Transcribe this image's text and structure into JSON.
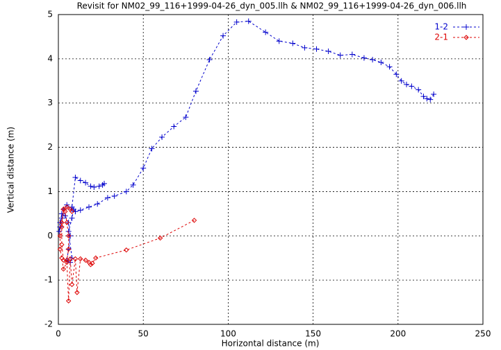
{
  "chart_data": {
    "type": "line",
    "title": "Revisit for NM02_99_116+1999-04-26_dyn_005.llh & NM02_99_116+1999-04-26_dyn_006.llh",
    "x_label": "Horizontal distance (m)",
    "y_label": "Vertical distance (m)",
    "xlim": [
      0,
      250
    ],
    "xticks": [
      0,
      50,
      100,
      150,
      200,
      250
    ],
    "ylim": [
      -2,
      5
    ],
    "yticks": [
      -2,
      -1,
      0,
      1,
      2,
      3,
      4,
      5
    ],
    "grid": true,
    "legend": "top-right",
    "series": [
      {
        "name": "1-2",
        "color": "#0000cc",
        "marker": "plus",
        "x": [
          221,
          219,
          217,
          215,
          212,
          208,
          205,
          202,
          199,
          195,
          190,
          185,
          180,
          173,
          166,
          159,
          152,
          145,
          138,
          130,
          122,
          112,
          105,
          97,
          89,
          81,
          75,
          68,
          61,
          55,
          50,
          44,
          40,
          33,
          29,
          23,
          18,
          13,
          10,
          8,
          5,
          3,
          2,
          1,
          0.5,
          1,
          2,
          4,
          6,
          7,
          6,
          5,
          7,
          8,
          6,
          8,
          9,
          10,
          8,
          10,
          13,
          16,
          19,
          21,
          24,
          26,
          27
        ],
        "values": [
          3.2,
          3.08,
          3.1,
          3.15,
          3.3,
          3.38,
          3.42,
          3.5,
          3.65,
          3.82,
          3.92,
          3.98,
          4.02,
          4.1,
          4.08,
          4.17,
          4.22,
          4.25,
          4.35,
          4.4,
          4.6,
          4.85,
          4.83,
          4.52,
          3.98,
          3.27,
          2.68,
          2.47,
          2.23,
          1.97,
          1.53,
          1.15,
          1.0,
          0.9,
          0.86,
          0.72,
          0.65,
          0.58,
          0.55,
          0.6,
          0.7,
          0.6,
          0.4,
          0.2,
          0.1,
          0.3,
          0.5,
          0.45,
          0.3,
          0.0,
          -0.3,
          -0.55,
          -0.6,
          -0.5,
          0.1,
          0.4,
          0.6,
          0.55,
          0.65,
          1.32,
          1.25,
          1.2,
          1.12,
          1.1,
          1.12,
          1.15,
          1.18
        ]
      },
      {
        "name": "2-1",
        "color": "#dd0000",
        "marker": "diamond",
        "x": [
          80,
          60,
          40,
          22,
          20,
          19,
          18,
          16,
          13,
          11,
          10,
          8,
          7,
          6,
          5,
          3,
          2,
          1,
          1,
          2,
          3,
          4,
          5,
          6,
          6,
          5,
          3,
          2,
          2,
          3,
          5,
          7,
          8
        ],
        "values": [
          0.35,
          -0.05,
          -0.32,
          -0.5,
          -0.62,
          -0.65,
          -0.6,
          -0.55,
          -0.52,
          -1.28,
          -0.52,
          -1.1,
          -0.52,
          -1.47,
          -0.6,
          -0.75,
          -0.5,
          -0.3,
          0,
          0.3,
          0.6,
          0.55,
          0.3,
          0,
          -0.3,
          -0.55,
          -0.55,
          -0.2,
          0.2,
          0.6,
          0.65,
          0.6,
          0.55
        ]
      }
    ]
  }
}
